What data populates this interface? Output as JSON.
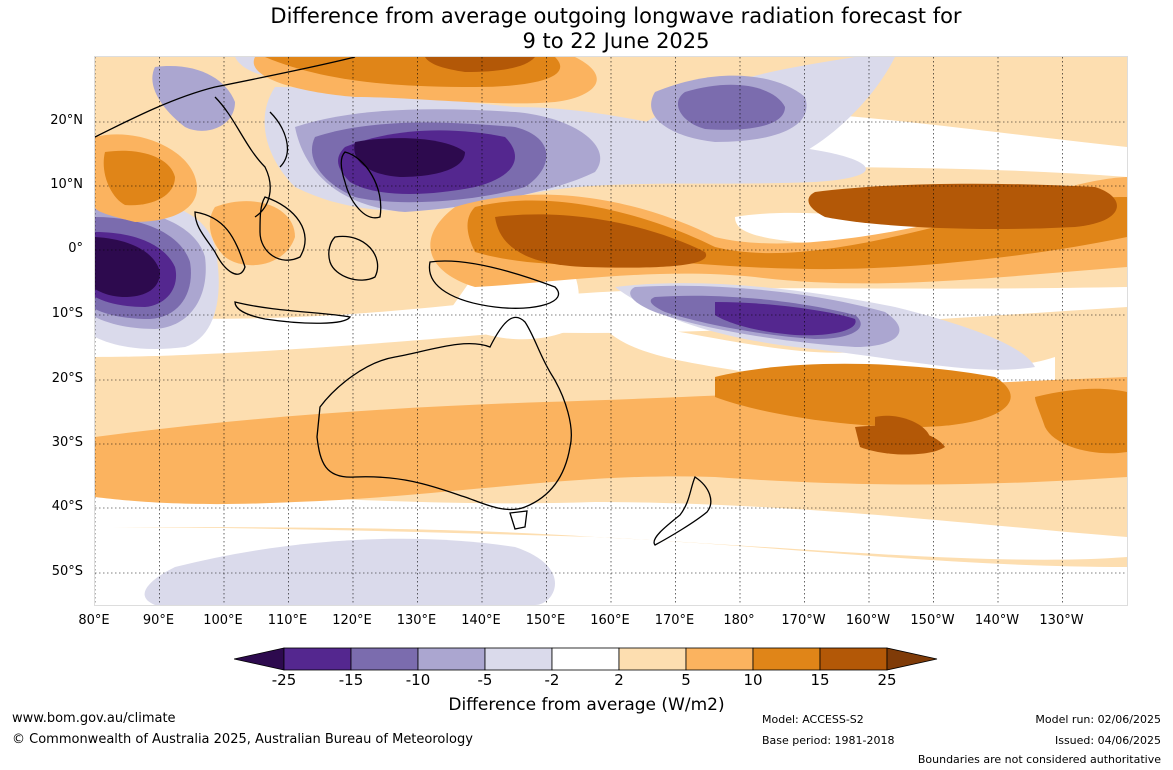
{
  "title": {
    "line1": "Difference from average outgoing longwave radiation forecast for",
    "line2": "9 to 22 June 2025"
  },
  "latitude_labels": [
    "20°N",
    "10°N",
    "0°",
    "10°S",
    "20°S",
    "30°S",
    "40°S",
    "50°S"
  ],
  "longitude_labels": [
    "80°E",
    "90°E",
    "100°E",
    "110°E",
    "120°E",
    "130°E",
    "140°E",
    "150°E",
    "160°E",
    "170°E",
    "180°",
    "170°W",
    "160°W",
    "150°W",
    "140°W",
    "130°W"
  ],
  "colorbar": {
    "ticks": [
      "-25",
      "-15",
      "-10",
      "-5",
      "-2",
      "2",
      "5",
      "10",
      "15",
      "25"
    ],
    "colors": [
      "#2d0a4e",
      "#54278f",
      "#7b6cae",
      "#aba6d0",
      "#dadaeb",
      "#ffffff",
      "#fddeb0",
      "#fbb35f",
      "#e08518",
      "#b35807",
      "#7f3b08"
    ],
    "label": "Difference from average (W/m2)"
  },
  "footer": {
    "website": "www.bom.gov.au/climate",
    "copyright": "© Commonwealth of Australia 2025, Australian Bureau of Meteorology",
    "model": "Model: ACCESS-S2",
    "base_period": "Base period: 1981-2018",
    "model_run": "Model run: 02/06/2025",
    "issued": "Issued: 04/06/2025",
    "disclaimer": "Boundaries are not considered authoritative"
  }
}
